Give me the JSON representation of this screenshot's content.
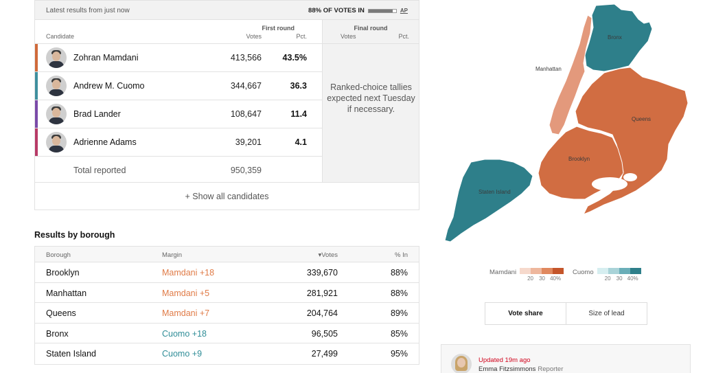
{
  "status": {
    "latest": "Latest results from just now",
    "votes_in": "88% OF VOTES IN",
    "reporting_fraction": 0.88,
    "source": "AP"
  },
  "candidates_table": {
    "headers": {
      "candidate": "Candidate",
      "first_round": "First round",
      "votes": "Votes",
      "pct": "Pct."
    },
    "rows": [
      {
        "name": "Zohran Mamdani",
        "votes": "413,566",
        "pct": "43.5%",
        "color": "#d06a3a"
      },
      {
        "name": "Andrew M. Cuomo",
        "votes": "344,667",
        "pct": "36.3",
        "color": "#3f8f9e"
      },
      {
        "name": "Brad Lander",
        "votes": "108,647",
        "pct": "11.4",
        "color": "#7a4aa8"
      },
      {
        "name": "Adrienne Adams",
        "votes": "39,201",
        "pct": "4.1",
        "color": "#b83a67"
      }
    ],
    "total": {
      "label": "Total reported",
      "votes": "950,359"
    },
    "show_all": "+ Show all candidates"
  },
  "final_round": {
    "title": "Final round",
    "votes": "Votes",
    "pct": "Pct.",
    "note": "Ranked-choice tallies expected next Tuesday if necessary."
  },
  "borough_results": {
    "title": "Results by borough",
    "headers": {
      "borough": "Borough",
      "margin": "Margin",
      "votes": "▾Votes",
      "pct_in": "% In"
    },
    "rows": [
      {
        "borough": "Brooklyn",
        "margin": "Mamdani +18",
        "votes": "339,670",
        "pct_in": "88%",
        "color": "#e07b47"
      },
      {
        "borough": "Manhattan",
        "margin": "Mamdani +5",
        "votes": "281,921",
        "pct_in": "88%",
        "color": "#e07b47"
      },
      {
        "borough": "Queens",
        "margin": "Mamdani +7",
        "votes": "204,764",
        "pct_in": "89%",
        "color": "#e07b47"
      },
      {
        "borough": "Bronx",
        "margin": "Cuomo +18",
        "votes": "96,505",
        "pct_in": "85%",
        "color": "#2f8d97"
      },
      {
        "borough": "Staten Island",
        "margin": "Cuomo +9",
        "votes": "27,499",
        "pct_in": "95%",
        "color": "#2f8d97"
      }
    ]
  },
  "map": {
    "labels": {
      "bronx": "Bronx",
      "manhattan": "Manhattan",
      "queens": "Queens",
      "brooklyn": "Brooklyn",
      "staten_island": "Staten Island"
    },
    "colors": {
      "bronx": "#2e7f8a",
      "manhattan": "#e3997c",
      "queens": "#d16d42",
      "brooklyn": "#d16d42",
      "staten_island": "#2e7f8a"
    }
  },
  "legend": {
    "mamdani": {
      "label": "Mamdani",
      "colors": [
        "#f6d9cc",
        "#eeb79d",
        "#e0885e",
        "#c4552a"
      ],
      "ticks": [
        "20",
        "30",
        "40%"
      ]
    },
    "cuomo": {
      "label": "Cuomo",
      "colors": [
        "#d6eef0",
        "#a9d3d8",
        "#6aaeb8",
        "#2e7f8a"
      ],
      "ticks": [
        "20",
        "30",
        "40%"
      ]
    }
  },
  "toggle": {
    "vote_share": "Vote share",
    "size_of_lead": "Size of lead"
  },
  "update": {
    "updated": "Updated 19m ago",
    "reporter": "Emma Fitzsimmons",
    "role": "Reporter"
  }
}
